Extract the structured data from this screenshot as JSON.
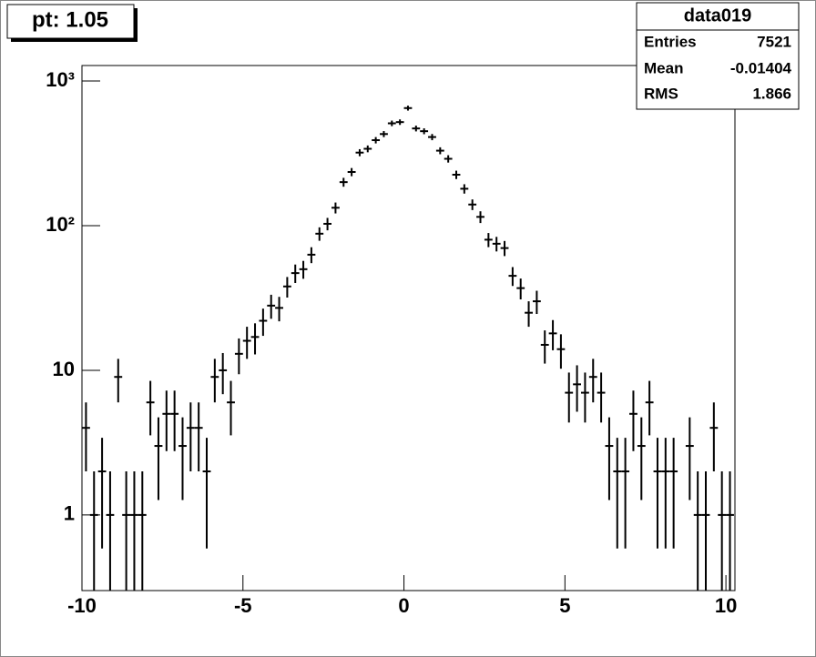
{
  "chart_data": {
    "type": "histogram",
    "title": "pt: 1.05",
    "stats": {
      "name": "data019",
      "entries_label": "Entries",
      "entries": 7521,
      "mean_label": "Mean",
      "mean": -0.01404,
      "rms_label": "RMS",
      "rms": 1.866
    },
    "bins": [
      -10,
      -9.75,
      -9.5,
      -9.25,
      -9,
      -8.75,
      -8.5,
      -8.25,
      -8,
      -7.75,
      -7.5,
      -7.25,
      -7,
      -6.75,
      -6.5,
      -6.25,
      -6,
      -5.75,
      -5.5,
      -5.25,
      -5,
      -4.75,
      -4.5,
      -4.25,
      -4,
      -3.75,
      -3.5,
      -3.25,
      -3,
      -2.75,
      -2.5,
      -2.25,
      -2,
      -1.75,
      -1.5,
      -1.25,
      -1,
      -0.75,
      -0.5,
      -0.25,
      0,
      0.25,
      0.5,
      0.75,
      1,
      1.25,
      1.5,
      1.75,
      2,
      2.25,
      2.5,
      2.75,
      3,
      3.25,
      3.5,
      3.75,
      4,
      4.25,
      4.5,
      4.75,
      5,
      5.25,
      5.5,
      5.75,
      6,
      6.25,
      6.5,
      6.75,
      7,
      7.25,
      7.5,
      7.75,
      8,
      8.25,
      8.5,
      8.75,
      9,
      9.25,
      9.5,
      9.75,
      10,
      10.25
    ],
    "values": [
      4,
      1,
      2,
      1,
      9,
      1,
      1,
      1,
      6,
      3,
      5,
      5,
      3,
      4,
      4,
      2,
      9,
      10,
      6,
      13,
      16,
      17,
      22,
      28,
      27,
      38,
      47,
      50,
      63,
      88,
      103,
      133,
      200,
      235,
      320,
      340,
      390,
      430,
      510,
      520,
      650,
      470,
      450,
      410,
      330,
      290,
      225,
      180,
      140,
      115,
      80,
      75,
      70,
      45,
      37,
      25,
      30,
      15,
      18,
      14,
      7,
      8,
      7,
      9,
      7,
      3,
      2,
      2,
      5,
      3,
      6,
      2,
      2,
      2,
      0,
      3,
      1,
      1,
      4,
      1,
      1
    ],
    "color": "#000000",
    "xlim": [
      -10,
      10.28
    ],
    "xticks": [
      -10,
      -5,
      0,
      5,
      10
    ],
    "ylim": [
      0.3,
      1280
    ],
    "log_y": true,
    "yticks": [
      1,
      10,
      {
        "value": 100,
        "label": "10²"
      },
      {
        "value": 1000,
        "label": "10³"
      }
    ]
  }
}
